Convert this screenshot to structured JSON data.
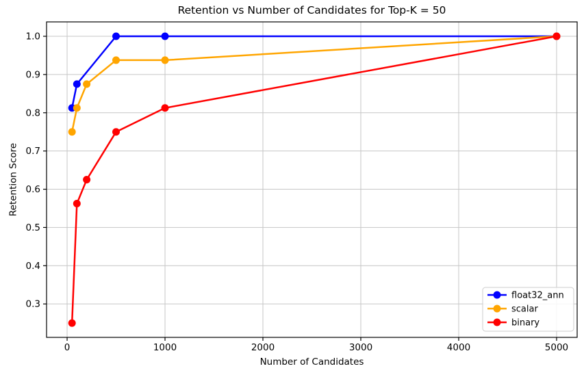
{
  "chart_data": {
    "type": "line",
    "title": "Retention vs Number of Candidates for Top-K = 50",
    "xlabel": "Number of Candidates",
    "ylabel": "Retention Score",
    "xlim": [
      -210,
      5210
    ],
    "ylim": [
      0.2126,
      1.0376
    ],
    "x_ticks": [
      0,
      1000,
      2000,
      3000,
      4000,
      5000
    ],
    "x_tick_labels": [
      "0",
      "1000",
      "2000",
      "3000",
      "4000",
      "5000"
    ],
    "y_ticks": [
      0.3,
      0.4,
      0.5,
      0.6,
      0.7,
      0.8,
      0.9,
      1.0
    ],
    "y_tick_labels": [
      "0.3",
      "0.4",
      "0.5",
      "0.6",
      "0.7",
      "0.8",
      "0.9",
      "1.0"
    ],
    "grid": true,
    "grid_color": "#c6c6c6",
    "spine_color": "#000000",
    "legend_position": "lower right",
    "marker": "circle",
    "series": [
      {
        "name": "float32_ann",
        "color": "#0000ff",
        "x": [
          50,
          100,
          500,
          1000,
          5000
        ],
        "y": [
          0.8125,
          0.875,
          1.0,
          1.0,
          1.0
        ]
      },
      {
        "name": "scalar",
        "color": "#ffa500",
        "x": [
          50,
          100,
          200,
          500,
          1000,
          5000
        ],
        "y": [
          0.75,
          0.8125,
          0.875,
          0.9375,
          0.9375,
          1.0
        ]
      },
      {
        "name": "binary",
        "color": "#ff0000",
        "x": [
          50,
          100,
          200,
          500,
          1000,
          5000
        ],
        "y": [
          0.25,
          0.5625,
          0.625,
          0.75,
          0.8125,
          1.0
        ]
      }
    ]
  }
}
